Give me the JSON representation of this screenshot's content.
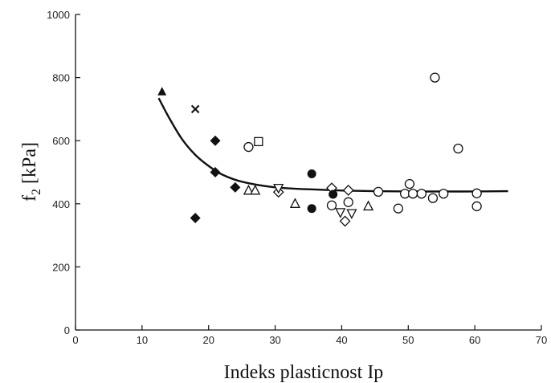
{
  "chart_data": {
    "type": "scatter",
    "title": "",
    "xlabel": "Indeks plasticnost Ip",
    "ylabel_main": "f",
    "ylabel_sub": "2",
    "ylabel_unit": " [kPa]",
    "xlim": [
      0,
      70
    ],
    "ylim": [
      0,
      1000
    ],
    "x_ticks": [
      0,
      10,
      20,
      30,
      40,
      50,
      60,
      70
    ],
    "y_ticks": [
      0,
      200,
      400,
      600,
      800,
      1000
    ],
    "grid": false,
    "legend": "none",
    "series": [
      {
        "marker": "filled-triangle",
        "points": [
          [
            13,
            755
          ]
        ]
      },
      {
        "marker": "x",
        "points": [
          [
            18,
            700
          ]
        ]
      },
      {
        "marker": "filled-diamond",
        "points": [
          [
            18,
            355
          ],
          [
            21,
            600
          ],
          [
            21,
            500
          ],
          [
            24,
            452
          ]
        ]
      },
      {
        "marker": "open-square",
        "points": [
          [
            27.5,
            597
          ]
        ]
      },
      {
        "marker": "open-triangle",
        "points": [
          [
            26,
            442
          ],
          [
            27,
            442
          ],
          [
            33,
            400
          ],
          [
            44,
            392
          ]
        ]
      },
      {
        "marker": "open-diamond",
        "points": [
          [
            30.5,
            437
          ],
          [
            38.5,
            450
          ],
          [
            40.5,
            345
          ],
          [
            41,
            443
          ]
        ]
      },
      {
        "marker": "open-down-triangle",
        "points": [
          [
            30.5,
            450
          ],
          [
            39.8,
            373
          ],
          [
            41.5,
            370
          ]
        ]
      },
      {
        "marker": "filled-circle",
        "points": [
          [
            35.5,
            495
          ],
          [
            35.5,
            385
          ],
          [
            38.7,
            430
          ]
        ]
      },
      {
        "marker": "open-circle",
        "points": [
          [
            26,
            580
          ],
          [
            38.5,
            395
          ],
          [
            41,
            405
          ],
          [
            45.5,
            438
          ],
          [
            48.5,
            385
          ],
          [
            49.5,
            432
          ],
          [
            50.2,
            463
          ],
          [
            50.7,
            432
          ],
          [
            52,
            432
          ],
          [
            53.7,
            418
          ],
          [
            54,
            800
          ],
          [
            55.3,
            432
          ],
          [
            57.5,
            575
          ],
          [
            60.3,
            392
          ],
          [
            60.3,
            433
          ]
        ]
      }
    ],
    "trend_line": [
      [
        12.5,
        735
      ],
      [
        14,
        675
      ],
      [
        16,
        605
      ],
      [
        18,
        555
      ],
      [
        20,
        520
      ],
      [
        22,
        493
      ],
      [
        25,
        470
      ],
      [
        30,
        452
      ],
      [
        35,
        446
      ],
      [
        40,
        442
      ],
      [
        45,
        440
      ],
      [
        50,
        439
      ],
      [
        55,
        439
      ],
      [
        60,
        439
      ],
      [
        65,
        440
      ]
    ]
  }
}
